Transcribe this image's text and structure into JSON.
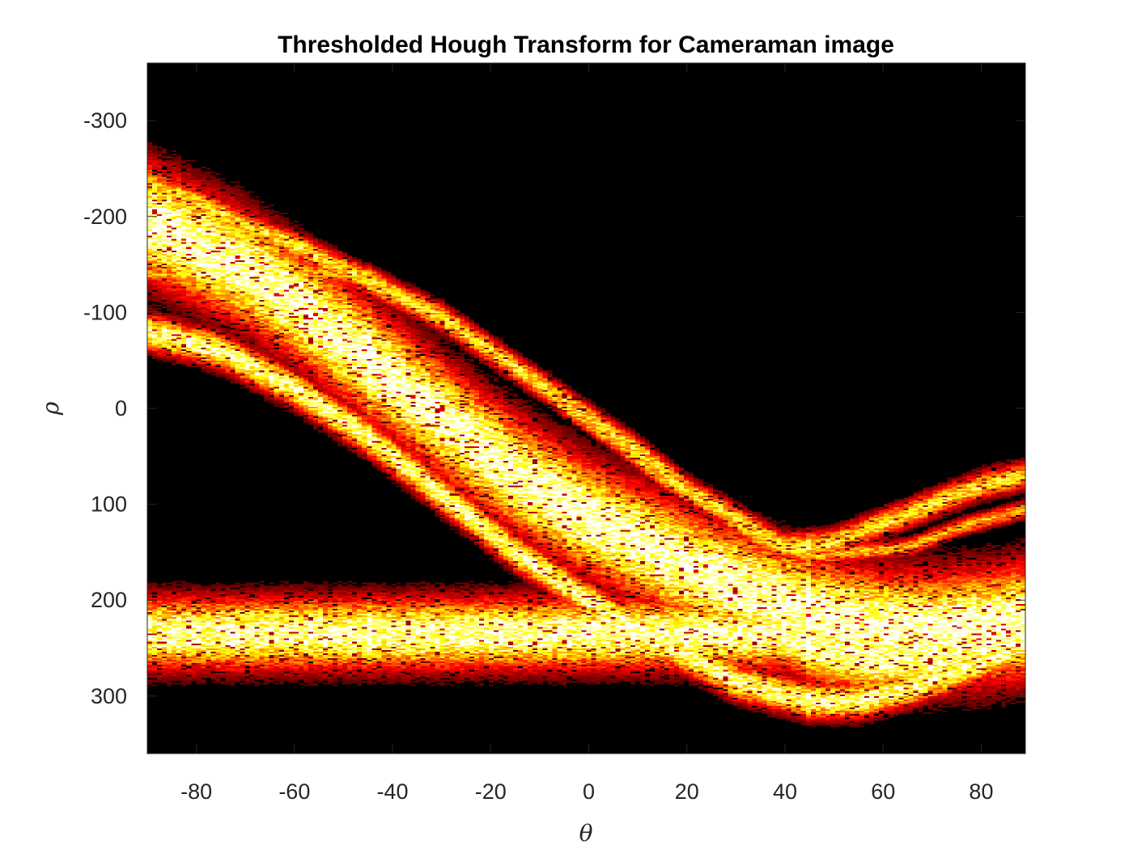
{
  "chart_data": {
    "type": "heatmap",
    "title": "Thresholded Hough Transform for Cameraman image",
    "xlabel": "θ",
    "ylabel": "ρ",
    "xlim": [
      -90,
      89
    ],
    "ylim": [
      -360,
      360
    ],
    "y_reversed": true,
    "x_ticks": [
      -80,
      -60,
      -40,
      -20,
      0,
      20,
      40,
      60,
      80
    ],
    "x_tick_labels": [
      "-80",
      "-60",
      "-40",
      "-20",
      "0",
      "20",
      "40",
      "60",
      "80"
    ],
    "y_ticks": [
      -300,
      -200,
      -100,
      0,
      100,
      200,
      300
    ],
    "y_tick_labels": [
      "-300",
      "-200",
      "-100",
      "0",
      "100",
      "200",
      "300"
    ],
    "grid": false,
    "colormap": "hot",
    "background_color": "#000000",
    "bands": [
      {
        "name": "main",
        "center": [
          [
            -90,
            -195
          ],
          [
            -80,
            -170
          ],
          [
            -70,
            -145
          ],
          [
            -60,
            -110
          ],
          [
            -50,
            -70
          ],
          [
            -40,
            -30
          ],
          [
            -30,
            10
          ],
          [
            -20,
            50
          ],
          [
            -10,
            85
          ],
          [
            0,
            115
          ],
          [
            10,
            140
          ],
          [
            20,
            165
          ],
          [
            30,
            185
          ],
          [
            40,
            205
          ],
          [
            50,
            220
          ],
          [
            60,
            230
          ],
          [
            70,
            232
          ],
          [
            80,
            228
          ],
          [
            89,
            222
          ]
        ],
        "halfwidth": 55,
        "intensity": 0.95
      },
      {
        "name": "lower",
        "center": [
          [
            -90,
            -80
          ],
          [
            -75,
            -60
          ],
          [
            -60,
            -20
          ],
          [
            -45,
            30
          ],
          [
            -30,
            90
          ],
          [
            -15,
            150
          ],
          [
            0,
            200
          ],
          [
            15,
            245
          ],
          [
            30,
            285
          ],
          [
            45,
            305
          ],
          [
            55,
            305
          ],
          [
            65,
            292
          ],
          [
            75,
            275
          ],
          [
            89,
            245
          ]
        ],
        "halfwidth": 18,
        "intensity": 0.85
      },
      {
        "name": "upper",
        "center": [
          [
            -90,
            -235
          ],
          [
            -80,
            -215
          ],
          [
            -70,
            -190
          ],
          [
            -60,
            -170
          ],
          [
            -50,
            -145
          ],
          [
            -40,
            -120
          ],
          [
            -30,
            -95
          ],
          [
            -20,
            -60
          ],
          [
            -10,
            -25
          ],
          [
            0,
            10
          ],
          [
            10,
            45
          ],
          [
            20,
            85
          ],
          [
            30,
            115
          ],
          [
            40,
            145
          ],
          [
            50,
            140
          ],
          [
            60,
            120
          ],
          [
            70,
            100
          ],
          [
            80,
            80
          ],
          [
            89,
            70
          ]
        ],
        "halfwidth": 14,
        "intensity": 0.7
      },
      {
        "name": "mid",
        "center": [
          [
            -45,
            -140
          ],
          [
            -35,
            -110
          ],
          [
            -25,
            -80
          ],
          [
            -15,
            -45
          ],
          [
            -5,
            0
          ],
          [
            5,
            35
          ],
          [
            15,
            75
          ],
          [
            25,
            105
          ],
          [
            35,
            140
          ],
          [
            45,
            155
          ],
          [
            55,
            150
          ],
          [
            65,
            145
          ],
          [
            75,
            125
          ],
          [
            89,
            105
          ]
        ],
        "halfwidth": 9,
        "intensity": 0.6
      },
      {
        "name": "right-lower",
        "center": [
          [
            40,
            235
          ],
          [
            50,
            255
          ],
          [
            60,
            262
          ],
          [
            70,
            258
          ],
          [
            80,
            248
          ],
          [
            89,
            238
          ]
        ],
        "halfwidth": 35,
        "intensity": 0.9
      }
    ],
    "vertical_streaks": [
      -45,
      45
    ]
  }
}
